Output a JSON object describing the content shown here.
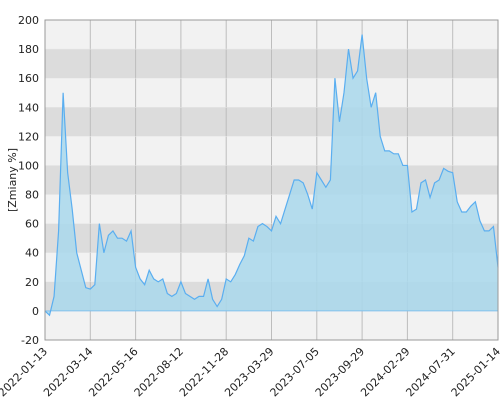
{
  "chart_data": {
    "type": "area",
    "y_label": "[Zmiany %]",
    "categories": [
      "2022-01-13",
      null,
      null,
      null,
      null,
      null,
      null,
      null,
      null,
      null,
      "2022-03-14",
      null,
      null,
      null,
      null,
      null,
      null,
      null,
      null,
      null,
      "2022-05-16",
      null,
      null,
      null,
      null,
      null,
      null,
      null,
      null,
      null,
      "2022-08-12",
      null,
      null,
      null,
      null,
      null,
      null,
      null,
      null,
      null,
      "2022-11-28",
      null,
      null,
      null,
      null,
      null,
      null,
      null,
      null,
      null,
      "2023-03-29",
      null,
      null,
      null,
      null,
      null,
      null,
      null,
      null,
      null,
      "2023-07-05",
      null,
      null,
      null,
      null,
      null,
      null,
      null,
      null,
      null,
      "2023-09-29",
      null,
      null,
      null,
      null,
      null,
      null,
      null,
      null,
      null,
      "2024-02-29",
      null,
      null,
      null,
      null,
      null,
      null,
      null,
      null,
      null,
      "2024-07-31",
      null,
      null,
      null,
      null,
      null,
      null,
      null,
      null,
      null,
      "2025-01-14"
    ],
    "values": [
      0,
      -3,
      10,
      55,
      150,
      95,
      70,
      40,
      28,
      16,
      15,
      18,
      60,
      40,
      52,
      55,
      50,
      50,
      48,
      55,
      30,
      22,
      18,
      28,
      22,
      20,
      22,
      12,
      10,
      12,
      20,
      12,
      10,
      8,
      10,
      10,
      22,
      8,
      3,
      8,
      22,
      20,
      25,
      32,
      38,
      50,
      48,
      58,
      60,
      58,
      55,
      65,
      60,
      70,
      80,
      90,
      90,
      88,
      80,
      70,
      95,
      90,
      85,
      90,
      160,
      130,
      150,
      180,
      160,
      165,
      190,
      160,
      140,
      150,
      120,
      110,
      110,
      108,
      108,
      100,
      100,
      68,
      70,
      88,
      90,
      78,
      88,
      90,
      98,
      96,
      95,
      75,
      68,
      68,
      72,
      75,
      62,
      55,
      55,
      58,
      30
    ],
    "color": "#5aaef0",
    "fill": "#a9d8ec",
    "ylim": [
      -20,
      200
    ],
    "yticks": [
      -20,
      0,
      20,
      40,
      60,
      80,
      100,
      120,
      140,
      160,
      180,
      200
    ]
  }
}
